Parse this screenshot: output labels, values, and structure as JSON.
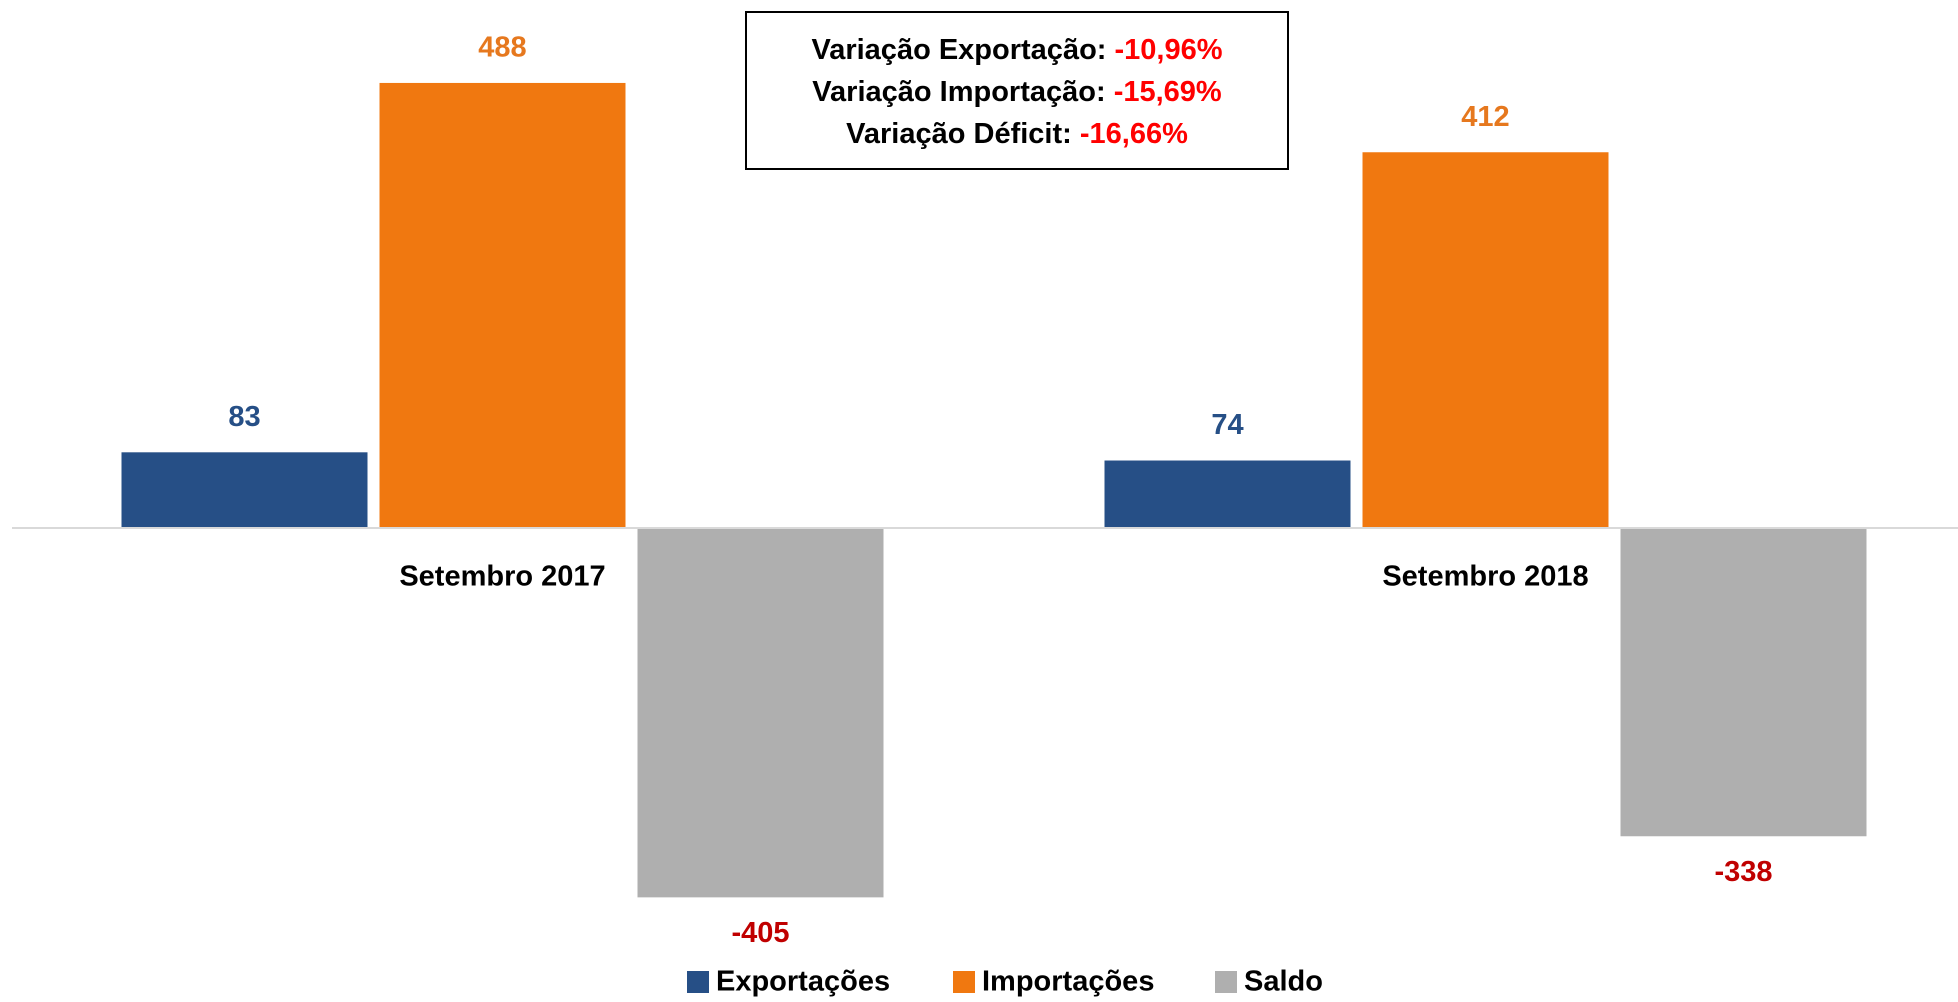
{
  "chart_data": {
    "type": "bar",
    "categories": [
      "Setembro 2017",
      "Setembro 2018"
    ],
    "series": [
      {
        "name": "Exportações",
        "color": "#264f86",
        "label_color": "#264f86",
        "values": [
          83,
          74
        ]
      },
      {
        "name": "Importações",
        "color": "#f07810",
        "label_color": "#e6781e",
        "values": [
          488,
          412
        ]
      },
      {
        "name": "Saldo",
        "color": "#afafaf",
        "label_color": "#c00000",
        "values": [
          -405,
          -338
        ]
      }
    ],
    "ylim": [
      -500,
      550
    ],
    "annotations": [
      {
        "label": "Variação Exportação:",
        "value": "-10,96%"
      },
      {
        "label": "Variação Importação:",
        "value": "-15,69%"
      },
      {
        "label": "Variação Déficit:",
        "value": "-16,66%"
      }
    ],
    "annotation_value_color": "#ff0000",
    "legend": "bottom"
  }
}
